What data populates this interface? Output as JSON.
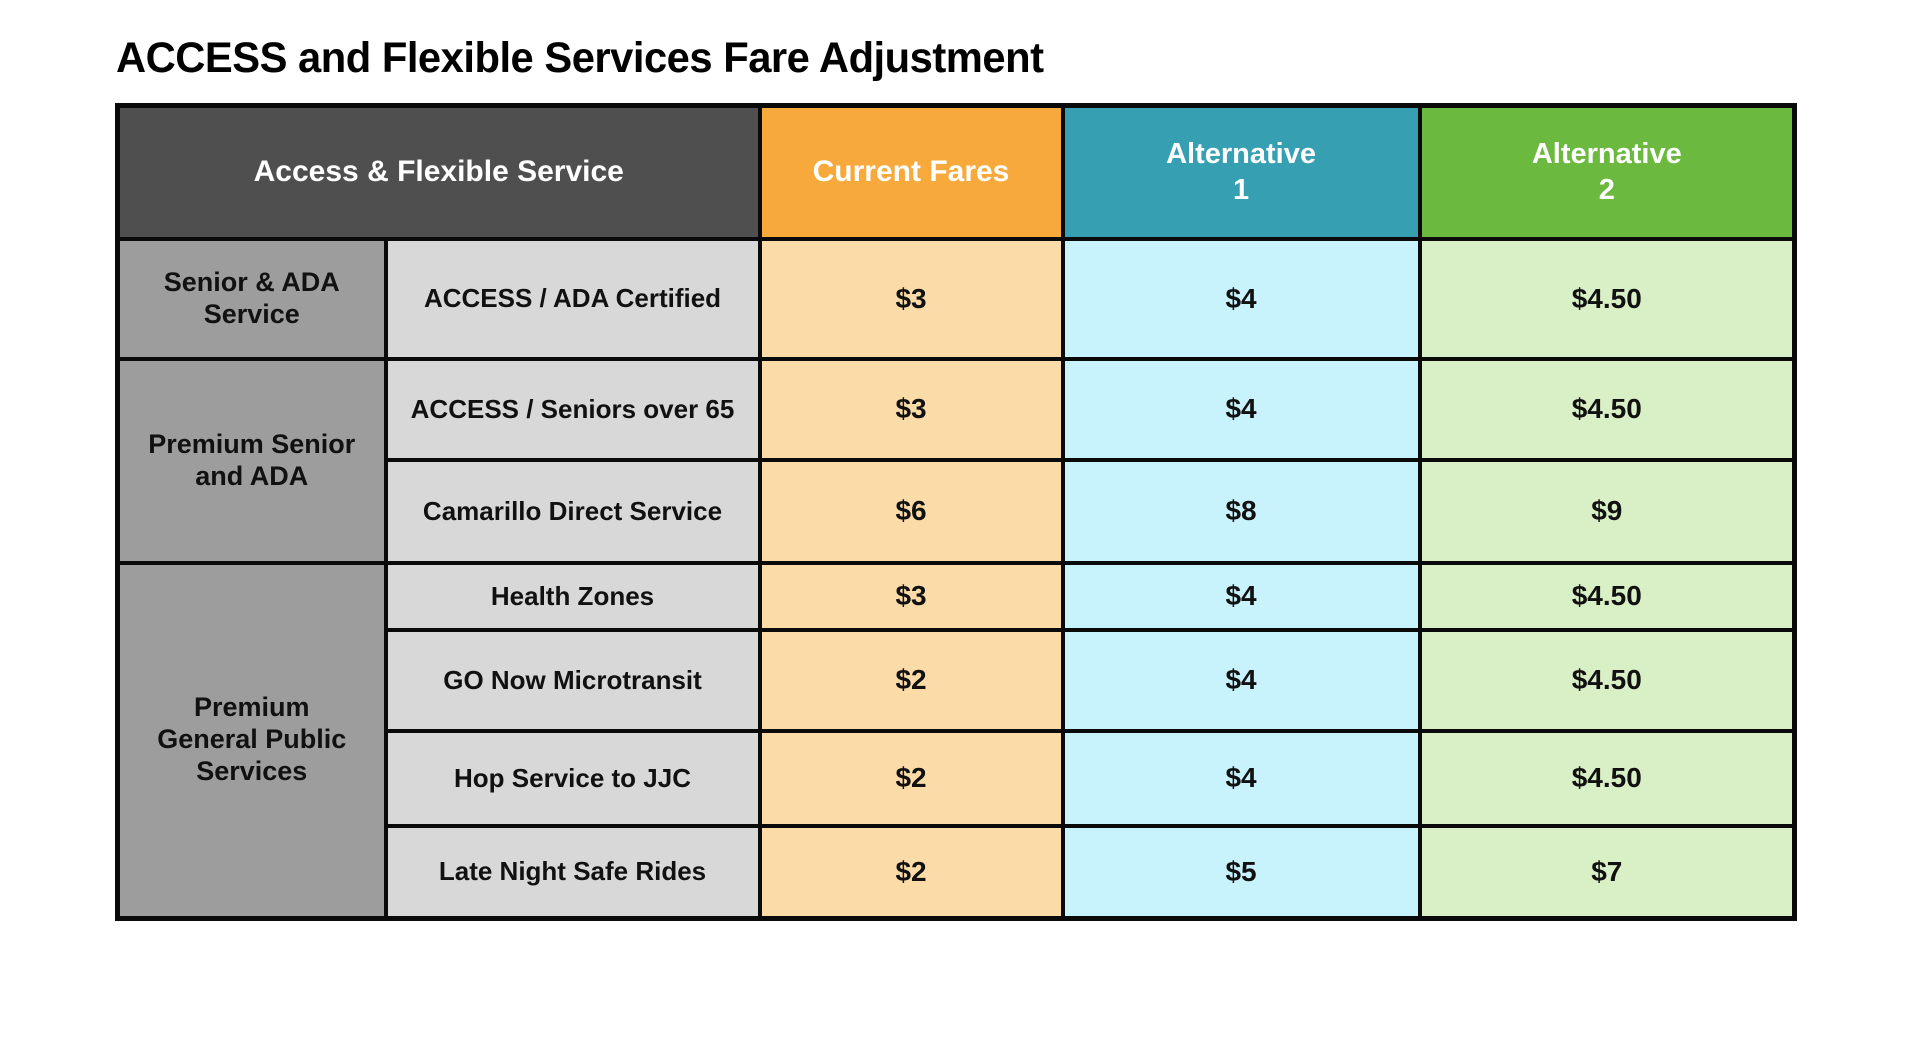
{
  "title": "ACCESS and Flexible Services Fare Adjustment",
  "theme": {
    "header-dark": "#4F4F4F",
    "header-orange": "#F8A93C",
    "header-teal": "#36A0B2",
    "header-green": "#6CB93F",
    "cell-orange": "#FBDCA8",
    "cell-blue": "#C8F2FC",
    "cell-green": "#D9EFC6",
    "group-gray": "#9D9D9D",
    "service-gray": "#D8D8D8",
    "border-black": "#0A0A0A",
    "text-dark": "#111111",
    "text-white": "#FFFFFF"
  },
  "table": {
    "header": {
      "service": "Access & Flexible Service",
      "current": "Current Fares",
      "alt1_label": "Alternative 1",
      "alt1_lines": [
        "Alternative",
        "1"
      ],
      "alt2_label": "Alternative 2",
      "alt2_lines": [
        "Alternative",
        "2"
      ]
    },
    "groups": [
      {
        "label": "Senior & ADA Service",
        "label_lines": [
          "Senior & ADA",
          "Service"
        ],
        "rows": [
          {
            "service": "ACCESS / ADA Certified",
            "current": "$3",
            "alt1": "$4",
            "alt2": "$4.50"
          }
        ]
      },
      {
        "label": "Premium Senior and ADA",
        "label_lines": [
          "Premium Senior",
          "and ADA"
        ],
        "rows": [
          {
            "service": "ACCESS / Seniors over 65",
            "current": "$3",
            "alt1": "$4",
            "alt2": "$4.50"
          },
          {
            "service": "Camarillo Direct Service",
            "current": "$6",
            "alt1": "$8",
            "alt2": "$9"
          }
        ]
      },
      {
        "label": "Premium General Public Services",
        "label_lines": [
          "Premium",
          "General Public",
          "Services"
        ],
        "rows": [
          {
            "service": "Health Zones",
            "current": "$3",
            "alt1": "$4",
            "alt2": "$4.50"
          },
          {
            "service": "GO Now Microtransit",
            "current": "$2",
            "alt1": "$4",
            "alt2": "$4.50"
          },
          {
            "service": "Hop Service to JJC",
            "current": "$2",
            "alt1": "$4",
            "alt2": "$4.50"
          },
          {
            "service": "Late Night Safe Rides",
            "current": "$2",
            "alt1": "$5",
            "alt2": "$7"
          }
        ]
      }
    ]
  },
  "chart_data": {
    "type": "table",
    "title": "ACCESS and Flexible Services Fare Adjustment",
    "columns": [
      "Service Group",
      "Access & Flexible Service",
      "Current Fares",
      "Alternative 1",
      "Alternative 2"
    ],
    "rows": [
      [
        "Senior & ADA Service",
        "ACCESS / ADA Certified",
        "$3",
        "$4",
        "$4.50"
      ],
      [
        "Premium Senior and ADA",
        "ACCESS / Seniors over 65",
        "$3",
        "$4",
        "$4.50"
      ],
      [
        "Premium Senior and ADA",
        "Camarillo Direct Service",
        "$6",
        "$8",
        "$9"
      ],
      [
        "Premium General Public Services",
        "Health Zones",
        "$3",
        "$4",
        "$4.50"
      ],
      [
        "Premium General Public Services",
        "GO Now Microtransit",
        "$2",
        "$4",
        "$4.50"
      ],
      [
        "Premium General Public Services",
        "Hop Service to JJC",
        "$2",
        "$4",
        "$4.50"
      ],
      [
        "Premium General Public Services",
        "Late Night Safe Rides",
        "$2",
        "$5",
        "$7"
      ]
    ]
  }
}
